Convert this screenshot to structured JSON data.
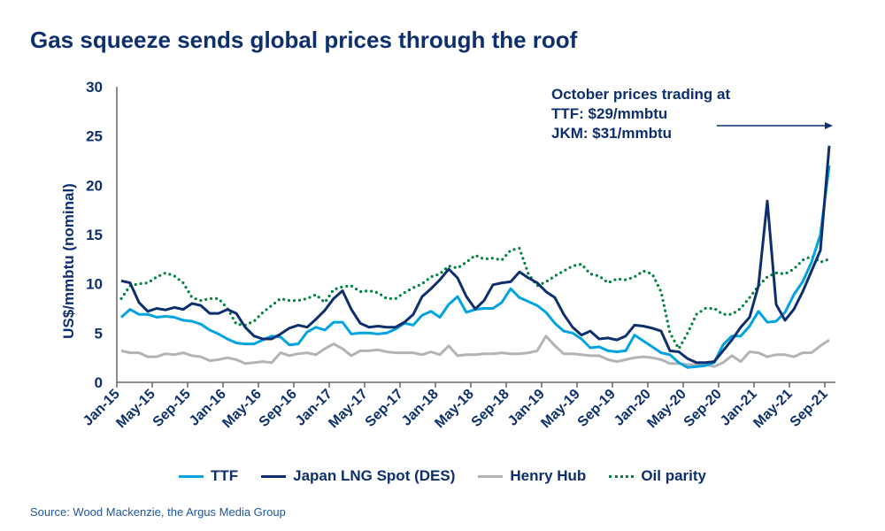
{
  "title": "Gas squeeze sends global prices through the roof",
  "source": "Source: Wood Mackenzie, the Argus Media Group",
  "annotation": [
    "October prices trading at",
    "TTF: $29/mmbtu",
    "JKM: $31/mmbtu"
  ],
  "chart_data": {
    "type": "line",
    "title": "Gas squeeze sends global prices through the roof",
    "ylabel": "US$/mmbtu (nominal)",
    "xlabel": "",
    "ylim": [
      0,
      30
    ],
    "yticks": [
      0,
      5,
      10,
      15,
      20,
      25,
      30
    ],
    "xtick_labels": [
      "Jan-15",
      "May-15",
      "Sep-15",
      "Jan-16",
      "May-16",
      "Sep-16",
      "Jan-17",
      "May-17",
      "Sep-17",
      "Jan-18",
      "May-18",
      "Sep-18",
      "Jan-19",
      "May-19",
      "Sep-19",
      "Jan-20",
      "May-20",
      "Sep-20",
      "Jan-21",
      "May-21",
      "Sep-21"
    ],
    "x_start": "Jan-15",
    "x_frequency": "monthly",
    "legend_position": "bottom",
    "series": [
      {
        "name": "TTF",
        "color": "#00a3e0",
        "style": "solid",
        "values": [
          6.6,
          7.4,
          6.9,
          6.9,
          6.6,
          6.7,
          6.6,
          6.3,
          6.2,
          5.9,
          5.3,
          4.9,
          4.4,
          4.0,
          3.9,
          3.9,
          4.3,
          4.7,
          4.6,
          3.8,
          3.9,
          5.1,
          5.6,
          5.3,
          6.1,
          6.1,
          4.9,
          5.0,
          5.0,
          4.9,
          5.0,
          5.4,
          6.0,
          5.8,
          6.8,
          7.2,
          6.6,
          7.9,
          8.7,
          7.1,
          7.4,
          7.5,
          7.5,
          8.1,
          9.5,
          8.6,
          8.2,
          7.8,
          7.1,
          6.0,
          5.2,
          5.0,
          4.4,
          3.5,
          3.6,
          3.2,
          3.1,
          3.2,
          4.8,
          4.2,
          3.6,
          3.0,
          2.8,
          2.0,
          1.5,
          1.6,
          1.7,
          2.0,
          3.8,
          4.7,
          4.7,
          5.7,
          7.2,
          6.1,
          6.2,
          7.1,
          8.9,
          10.2,
          12.2,
          15.0,
          22.0
        ]
      },
      {
        "name": "Japan LNG Spot (DES)",
        "color": "#0d2f6e",
        "style": "solid",
        "values": [
          10.3,
          10.1,
          8.1,
          7.2,
          7.5,
          7.35,
          7.6,
          7.4,
          8.0,
          7.8,
          7.0,
          7.0,
          7.4,
          7.0,
          5.6,
          4.7,
          4.4,
          4.4,
          4.9,
          5.5,
          5.8,
          5.6,
          6.4,
          7.3,
          8.5,
          9.3,
          7.4,
          6.0,
          5.6,
          5.7,
          5.6,
          5.6,
          6.1,
          6.9,
          8.7,
          9.5,
          10.4,
          11.5,
          10.6,
          8.7,
          7.45,
          8.3,
          9.9,
          10.1,
          10.2,
          11.2,
          10.6,
          10.1,
          9.2,
          8.6,
          6.9,
          5.6,
          4.8,
          5.2,
          4.4,
          4.5,
          4.3,
          4.7,
          5.8,
          5.7,
          5.5,
          5.2,
          3.2,
          3.1,
          2.4,
          2.0,
          2.0,
          2.1,
          3.2,
          4.3,
          5.6,
          6.6,
          9.8,
          18.4,
          7.9,
          6.3,
          7.4,
          9.2,
          11.3,
          13.4,
          24.0
        ]
      },
      {
        "name": "Henry Hub",
        "color": "#b3b3b3",
        "style": "solid",
        "values": [
          3.2,
          3.0,
          3.0,
          2.6,
          2.6,
          2.9,
          2.8,
          3.0,
          2.7,
          2.6,
          2.2,
          2.3,
          2.5,
          2.3,
          1.9,
          2.0,
          2.1,
          2.0,
          3.0,
          2.7,
          2.9,
          3.0,
          2.8,
          3.4,
          3.9,
          3.4,
          2.7,
          3.2,
          3.2,
          3.3,
          3.1,
          3.0,
          3.0,
          3.0,
          2.8,
          3.1,
          2.8,
          3.7,
          2.7,
          2.8,
          2.8,
          2.9,
          2.9,
          3.0,
          2.9,
          2.9,
          3.0,
          3.2,
          4.7,
          3.7,
          2.9,
          2.9,
          2.8,
          2.7,
          2.7,
          2.3,
          2.1,
          2.3,
          2.5,
          2.6,
          2.5,
          2.3,
          1.9,
          1.9,
          1.8,
          1.8,
          1.8,
          1.6,
          2.0,
          2.7,
          2.1,
          3.1,
          3.0,
          2.6,
          2.8,
          2.8,
          2.6,
          3.0,
          3.0,
          3.7,
          4.3
        ]
      },
      {
        "name": "Oil parity",
        "color": "#00843d",
        "style": "dotted",
        "values": [
          8.5,
          9.8,
          10.0,
          10.1,
          10.7,
          11.1,
          10.8,
          10.1,
          8.6,
          8.3,
          8.5,
          8.5,
          7.5,
          5.9,
          5.8,
          6.2,
          7.1,
          7.8,
          8.5,
          8.3,
          8.3,
          8.5,
          8.9,
          8.1,
          9.4,
          9.7,
          9.8,
          9.2,
          9.3,
          9.1,
          8.5,
          8.5,
          9.1,
          9.6,
          10.0,
          10.7,
          11.0,
          11.8,
          11.6,
          12.2,
          12.9,
          12.5,
          12.6,
          12.4,
          13.4,
          13.6,
          11.0,
          9.8,
          10.2,
          10.8,
          11.3,
          11.8,
          12.0,
          11.0,
          10.8,
          10.1,
          10.5,
          10.4,
          10.7,
          11.3,
          11.0,
          9.2,
          5.0,
          3.4,
          5.0,
          6.9,
          7.5,
          7.5,
          6.9,
          6.9,
          7.5,
          8.6,
          9.8,
          10.7,
          11.1,
          11.0,
          11.5,
          12.4,
          12.8,
          12.2,
          12.5
        ]
      }
    ]
  }
}
